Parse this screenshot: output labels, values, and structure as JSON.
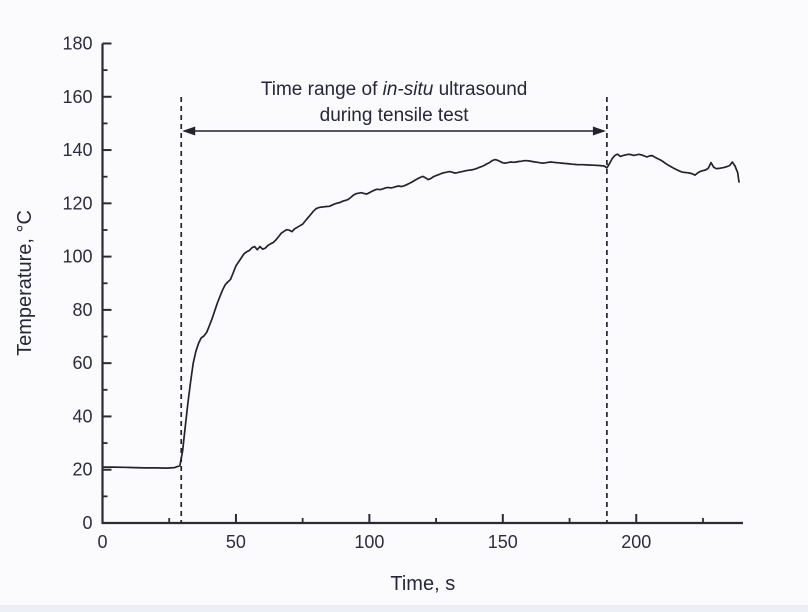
{
  "figure": {
    "background_color": "#fbfbfd",
    "plot_background_color": "#fbfbfd"
  },
  "chart_data": {
    "type": "line",
    "title": "",
    "xlabel": "Time, s",
    "ylabel": "Temperature, °C",
    "xlim": [
      0,
      240
    ],
    "ylim": [
      0,
      180
    ],
    "xticks": [
      0,
      50,
      100,
      150,
      200
    ],
    "yticks": [
      0,
      20,
      40,
      60,
      80,
      100,
      120,
      140,
      160,
      180
    ],
    "x_minor_tick_step": 25,
    "y_minor_tick_step": 10,
    "grid": false,
    "legend": null,
    "line_color": "#23232f",
    "axis_color": "#2a2a38",
    "text_color": "#2c2c42",
    "annotation": {
      "line1_prefix": "Time range of ",
      "line1_italic": "in-situ",
      "line1_suffix": " ultrasound",
      "line2": "during tensile test",
      "range_start_s": 29.5,
      "range_end_s": 189,
      "style": "two dashed vertical lines spanning plot height joined by a horizontal double-headed arrow"
    },
    "series": [
      {
        "name": "temperature",
        "points": [
          [
            0,
            21
          ],
          [
            4,
            21
          ],
          [
            8,
            20.9
          ],
          [
            12,
            20.8
          ],
          [
            16,
            20.7
          ],
          [
            20,
            20.7
          ],
          [
            24,
            20.6
          ],
          [
            27,
            20.8
          ],
          [
            29,
            21.5
          ],
          [
            30,
            27
          ],
          [
            31,
            36
          ],
          [
            32,
            45
          ],
          [
            33,
            53
          ],
          [
            34,
            60
          ],
          [
            35,
            64.5
          ],
          [
            36,
            67.5
          ],
          [
            37,
            69.5
          ],
          [
            38,
            70.2
          ],
          [
            39,
            71.5
          ],
          [
            40,
            74
          ],
          [
            41,
            76.5
          ],
          [
            42,
            79.5
          ],
          [
            43,
            82.5
          ],
          [
            44,
            85
          ],
          [
            45,
            87.5
          ],
          [
            46,
            89.5
          ],
          [
            47,
            90.5
          ],
          [
            48,
            91.5
          ],
          [
            49,
            94
          ],
          [
            50,
            96.5
          ],
          [
            51,
            98
          ],
          [
            52,
            99.5
          ],
          [
            53,
            101
          ],
          [
            54,
            101.8
          ],
          [
            55,
            102.3
          ],
          [
            56,
            103.3
          ],
          [
            57,
            103.8
          ],
          [
            58,
            102.6
          ],
          [
            59,
            103.8
          ],
          [
            60,
            102.8
          ],
          [
            61,
            103.2
          ],
          [
            62,
            104.2
          ],
          [
            63,
            104.8
          ],
          [
            64,
            105.3
          ],
          [
            65,
            106.3
          ],
          [
            66,
            107.5
          ],
          [
            67,
            108.8
          ],
          [
            68,
            109.5
          ],
          [
            69,
            110.1
          ],
          [
            70,
            109.9
          ],
          [
            71,
            109.4
          ],
          [
            72,
            110.4
          ],
          [
            73,
            111
          ],
          [
            74,
            111.6
          ],
          [
            75,
            112.2
          ],
          [
            76,
            113.4
          ],
          [
            77,
            114.6
          ],
          [
            78,
            115.8
          ],
          [
            79,
            117
          ],
          [
            80,
            118
          ],
          [
            81,
            118.4
          ],
          [
            82,
            118.6
          ],
          [
            83,
            118.7
          ],
          [
            84,
            118.8
          ],
          [
            85,
            118.9
          ],
          [
            86,
            119.3
          ],
          [
            87,
            119.8
          ],
          [
            88,
            120.1
          ],
          [
            89,
            120.3
          ],
          [
            90,
            120.8
          ],
          [
            91,
            121.1
          ],
          [
            92,
            121.4
          ],
          [
            93,
            122.2
          ],
          [
            94,
            123.1
          ],
          [
            95,
            123.6
          ],
          [
            96,
            123.8
          ],
          [
            97,
            124
          ],
          [
            98,
            123.7
          ],
          [
            99,
            123.5
          ],
          [
            100,
            124
          ],
          [
            101,
            124.5
          ],
          [
            102,
            125
          ],
          [
            103,
            125.3
          ],
          [
            104,
            125.1
          ],
          [
            105,
            125.4
          ],
          [
            106,
            125.8
          ],
          [
            107,
            126
          ],
          [
            108,
            125.8
          ],
          [
            109,
            126
          ],
          [
            110,
            126.3
          ],
          [
            111,
            126.5
          ],
          [
            112,
            126.3
          ],
          [
            113,
            126.6
          ],
          [
            114,
            127
          ],
          [
            115,
            127.5
          ],
          [
            116,
            128
          ],
          [
            117,
            128.6
          ],
          [
            118,
            129.2
          ],
          [
            119,
            129.7
          ],
          [
            120,
            130.1
          ],
          [
            121,
            129.6
          ],
          [
            122,
            128.9
          ],
          [
            123,
            129.3
          ],
          [
            124,
            130
          ],
          [
            125,
            130.4
          ],
          [
            126,
            130.8
          ],
          [
            127,
            131.2
          ],
          [
            128,
            131.5
          ],
          [
            129,
            131.7
          ],
          [
            130,
            131.9
          ],
          [
            131,
            131.7
          ],
          [
            132,
            131.4
          ],
          [
            133,
            131.5
          ],
          [
            134,
            131.8
          ],
          [
            135,
            132
          ],
          [
            136,
            132.2
          ],
          [
            137,
            132.4
          ],
          [
            138,
            132.5
          ],
          [
            139,
            132.7
          ],
          [
            140,
            133
          ],
          [
            141,
            133.4
          ],
          [
            142,
            133.8
          ],
          [
            143,
            134.2
          ],
          [
            144,
            134.8
          ],
          [
            145,
            135.3
          ],
          [
            146,
            136
          ],
          [
            147,
            136.4
          ],
          [
            148,
            136.2
          ],
          [
            149,
            135.7
          ],
          [
            150,
            135.2
          ],
          [
            151,
            135.1
          ],
          [
            152,
            135.3
          ],
          [
            153,
            135.5
          ],
          [
            154,
            135.4
          ],
          [
            155,
            135.5
          ],
          [
            156,
            135.7
          ],
          [
            157,
            135.8
          ],
          [
            158,
            136
          ],
          [
            159,
            136
          ],
          [
            160,
            135.9
          ],
          [
            161,
            135.7
          ],
          [
            162,
            135.5
          ],
          [
            163,
            135.4
          ],
          [
            164,
            135.2
          ],
          [
            165,
            135.1
          ],
          [
            166,
            135.2
          ],
          [
            167,
            135.4
          ],
          [
            168,
            135.5
          ],
          [
            169,
            135.4
          ],
          [
            170,
            135.3
          ],
          [
            171,
            135.2
          ],
          [
            172,
            135.1
          ],
          [
            173,
            135
          ],
          [
            174,
            134.9
          ],
          [
            175,
            134.8
          ],
          [
            176,
            134.7
          ],
          [
            177,
            134.6
          ],
          [
            178,
            134.5
          ],
          [
            180,
            134.5
          ],
          [
            182,
            134.4
          ],
          [
            184,
            134.3
          ],
          [
            186,
            134.2
          ],
          [
            188,
            134
          ],
          [
            189,
            133.3
          ],
          [
            190,
            135
          ],
          [
            191,
            136.8
          ],
          [
            192,
            138
          ],
          [
            193,
            138.5
          ],
          [
            194,
            137.6
          ],
          [
            195,
            137.9
          ],
          [
            196,
            138.2
          ],
          [
            197,
            138.4
          ],
          [
            198,
            138.3
          ],
          [
            199,
            138
          ],
          [
            200,
            138.2
          ],
          [
            201,
            138.4
          ],
          [
            202,
            138.2
          ],
          [
            203,
            137.8
          ],
          [
            204,
            137.4
          ],
          [
            205,
            137.8
          ],
          [
            206,
            137.9
          ],
          [
            207,
            137.3
          ],
          [
            208,
            136.8
          ],
          [
            209,
            136.3
          ],
          [
            210,
            135.7
          ],
          [
            211,
            135
          ],
          [
            212,
            134.3
          ],
          [
            213,
            133.8
          ],
          [
            214,
            133.2
          ],
          [
            215,
            132.7
          ],
          [
            216,
            132.2
          ],
          [
            217,
            131.8
          ],
          [
            218,
            131.6
          ],
          [
            219,
            131.5
          ],
          [
            220,
            131.4
          ],
          [
            221,
            131.1
          ],
          [
            222,
            130.6
          ],
          [
            223,
            131.4
          ],
          [
            224,
            132
          ],
          [
            225,
            132.3
          ],
          [
            226,
            132.5
          ],
          [
            227,
            133.2
          ],
          [
            228,
            135.3
          ],
          [
            229,
            133.6
          ],
          [
            230,
            133
          ],
          [
            231,
            133.1
          ],
          [
            232,
            133.3
          ],
          [
            233,
            133.5
          ],
          [
            234,
            133.8
          ],
          [
            235,
            134.2
          ],
          [
            236,
            135.5
          ],
          [
            237,
            134
          ],
          [
            238,
            131.5
          ],
          [
            238.5,
            128
          ]
        ]
      }
    ]
  }
}
